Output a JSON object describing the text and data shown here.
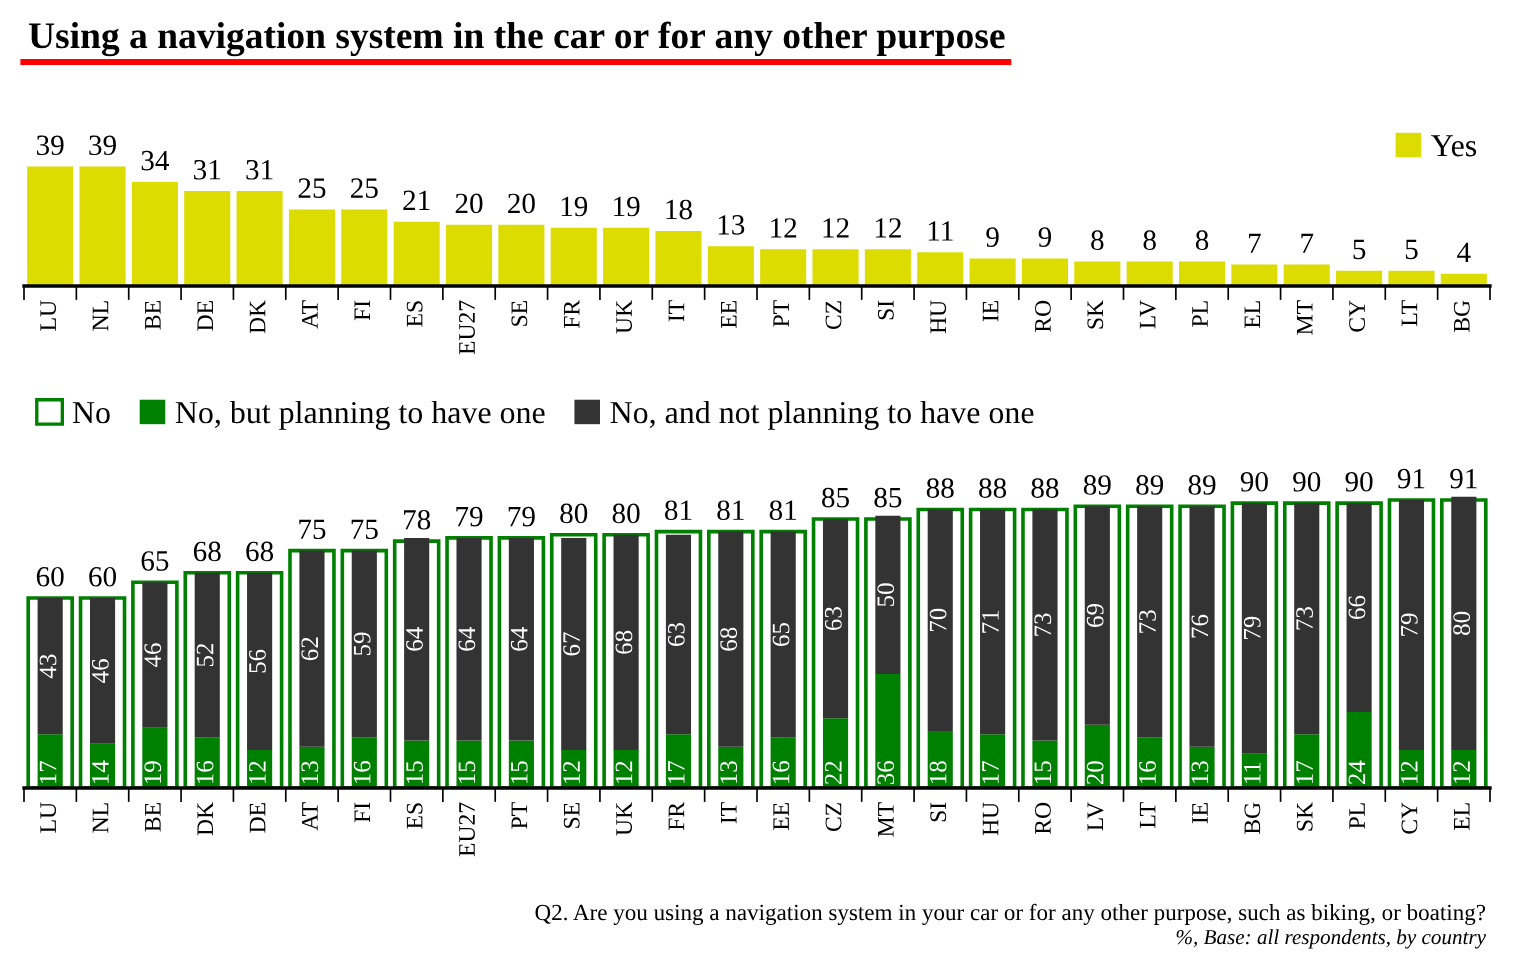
{
  "chart_data": [
    {
      "type": "bar",
      "title": "Using a navigation system in the car or for any other purpose",
      "categories": [
        "LU",
        "NL",
        "BE",
        "DE",
        "DK",
        "AT",
        "FI",
        "ES",
        "EU27",
        "SE",
        "FR",
        "UK",
        "IT",
        "EE",
        "PT",
        "CZ",
        "SI",
        "HU",
        "IE",
        "RO",
        "SK",
        "LV",
        "PL",
        "EL",
        "MT",
        "CY",
        "LT",
        "BG"
      ],
      "series": [
        {
          "name": "Yes",
          "color": "#dcdc00",
          "values": [
            39,
            39,
            34,
            31,
            31,
            25,
            25,
            21,
            20,
            20,
            19,
            19,
            18,
            13,
            12,
            12,
            12,
            11,
            9,
            9,
            8,
            8,
            8,
            7,
            7,
            5,
            5,
            4
          ]
        }
      ],
      "data_labels": true,
      "legend": "top right",
      "tick_labels": "x"
    },
    {
      "type": "bar",
      "stacked": true,
      "categories": [
        "LU",
        "NL",
        "BE",
        "DK",
        "DE",
        "AT",
        "FI",
        "ES",
        "EU27",
        "PT",
        "SE",
        "UK",
        "FR",
        "IT",
        "EE",
        "CZ",
        "MT",
        "SI",
        "HU",
        "RO",
        "LV",
        "LT",
        "IE",
        "BG",
        "SK",
        "PL",
        "CY",
        "EL"
      ],
      "series": [
        {
          "name": "No",
          "color": "#ffffff",
          "axis": "y2",
          "values": [
            60,
            60,
            65,
            68,
            68,
            75,
            75,
            78,
            79,
            79,
            80,
            80,
            81,
            81,
            81,
            85,
            85,
            88,
            88,
            88,
            89,
            89,
            89,
            90,
            90,
            90,
            91,
            91
          ]
        },
        {
          "name": "No, but planning to have one",
          "color": "#008000",
          "values": [
            17,
            14,
            19,
            16,
            12,
            13,
            16,
            15,
            15,
            15,
            12,
            12,
            17,
            13,
            16,
            22,
            36,
            18,
            17,
            15,
            20,
            16,
            13,
            11,
            17,
            24,
            12,
            12
          ]
        },
        {
          "name": "No, and not planning to have one",
          "color": "#333333",
          "values": [
            43,
            46,
            46,
            52,
            56,
            62,
            59,
            64,
            64,
            64,
            67,
            68,
            63,
            68,
            65,
            63,
            50,
            70,
            71,
            73,
            69,
            73,
            76,
            79,
            73,
            66,
            79,
            80
          ]
        }
      ],
      "data_labels": true,
      "legend": "top left",
      "tick_labels": "x",
      "annotations": [
        "Q2. Are you using a navigation system in your car or for any other purpose, such as biking, or boating?",
        "%, Base: all respondents, by country"
      ]
    }
  ]
}
